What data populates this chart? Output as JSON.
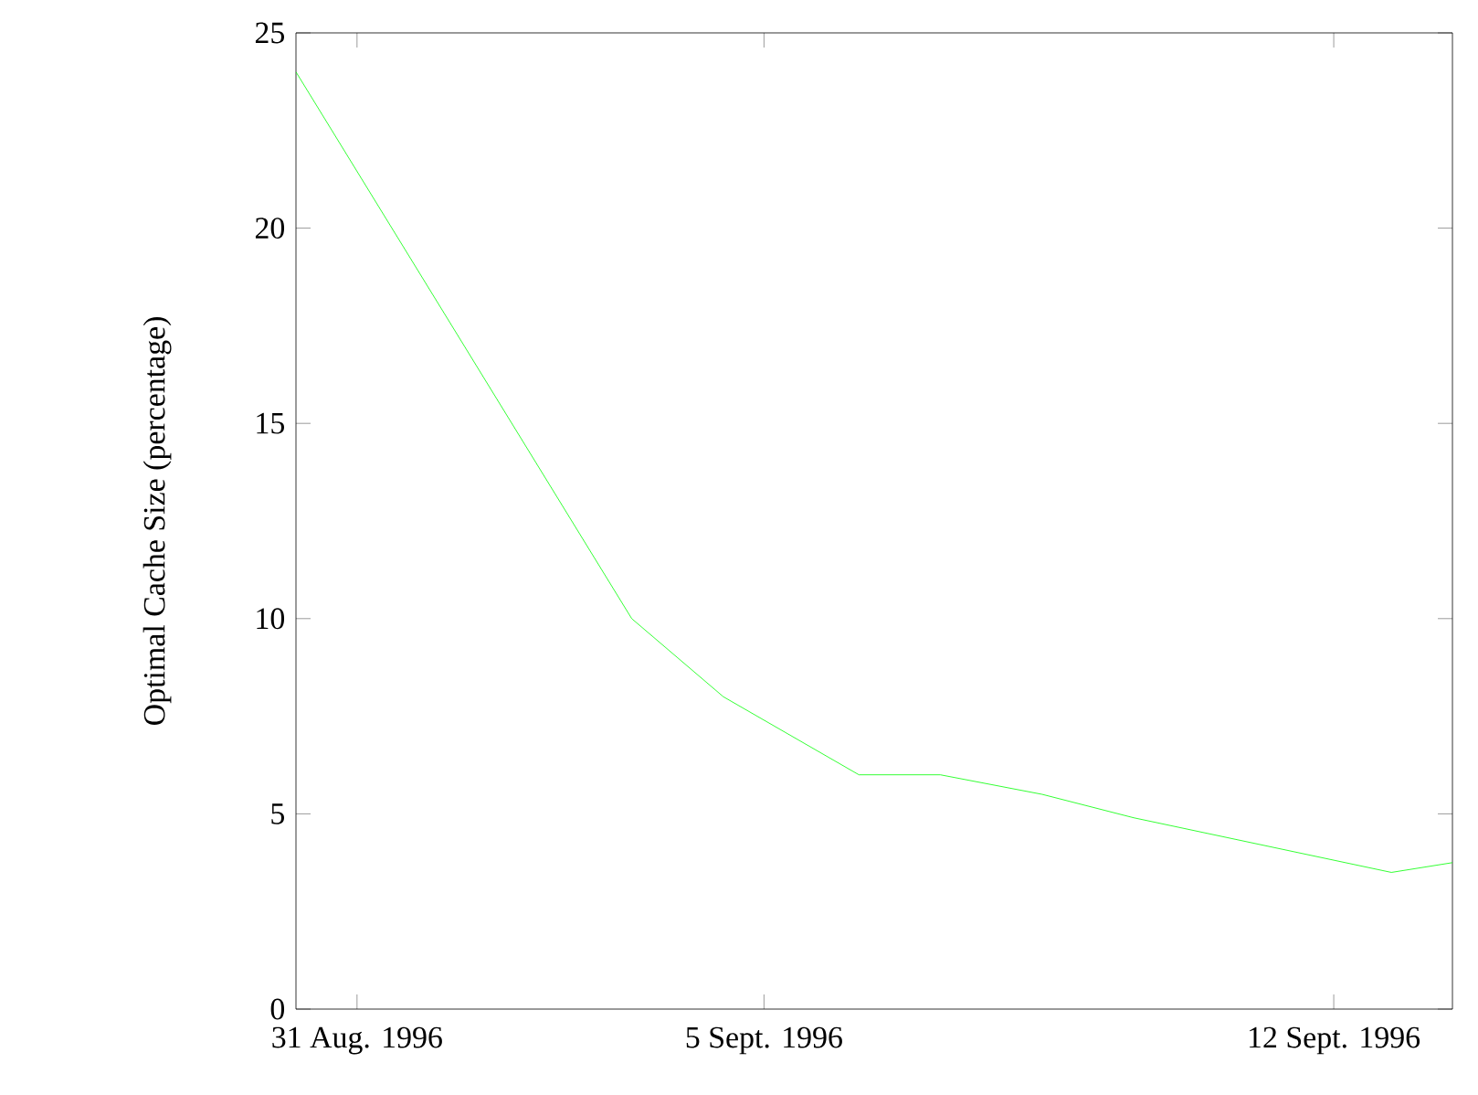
{
  "chart_data": {
    "type": "line",
    "ylabel": "Optimal Cache Size (percentage)",
    "x": [
      "1996-08-30T06:00",
      "1996-09-03T09:00",
      "1996-09-04T12:00",
      "1996-09-06T04:00",
      "1996-09-07T04:00",
      "1996-09-08T10:00",
      "1996-09-09T13:00",
      "1996-09-12T17:00",
      "1996-09-13T11:00"
    ],
    "values": [
      24,
      10,
      8,
      6,
      6,
      5.5,
      4.9,
      3.5,
      3.75
    ],
    "color": "#00ff00",
    "xlim": [
      "1996-08-30T06:00",
      "1996-09-13T11:00"
    ],
    "xticks": [
      {
        "value": "1996-08-31",
        "label": "31 Aug. 1996"
      },
      {
        "value": "1996-09-05",
        "label": "5 Sept. 1996"
      },
      {
        "value": "1996-09-12",
        "label": "12 Sept. 1996"
      }
    ],
    "ylim": [
      0,
      25
    ],
    "yticks": [
      0,
      5,
      10,
      15,
      20,
      25
    ]
  }
}
